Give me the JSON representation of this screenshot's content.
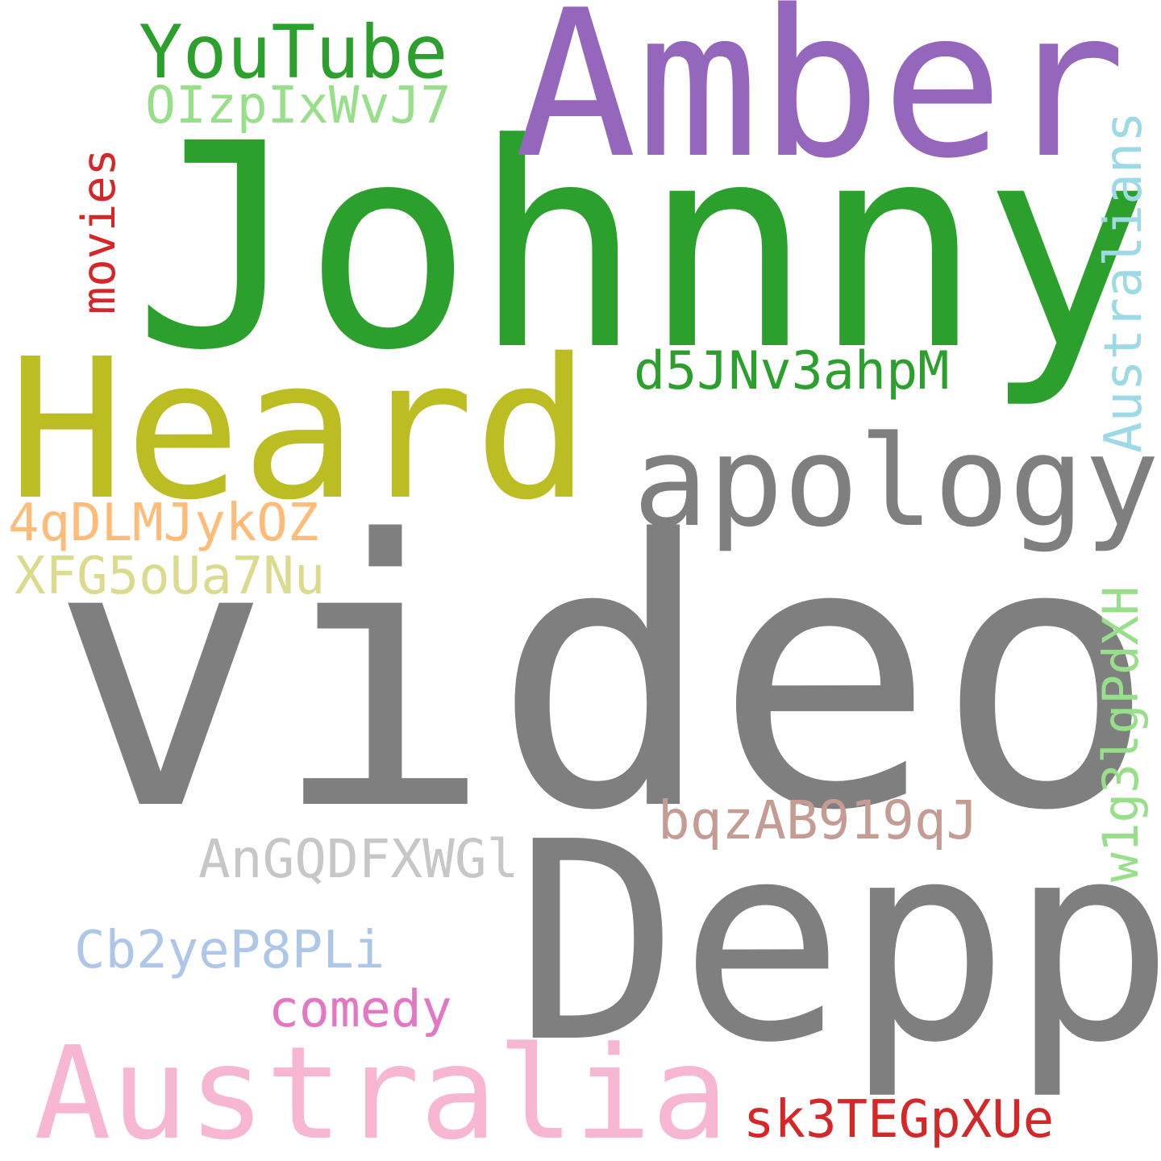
{
  "words": {
    "video": {
      "text": "video",
      "color": "#7f7f7f"
    },
    "depp": {
      "text": "Depp",
      "color": "#7f7f7f"
    },
    "johnny": {
      "text": "Johnny",
      "color": "#2ca02c"
    },
    "amber": {
      "text": "Amber",
      "color": "#9467bd"
    },
    "heard": {
      "text": "Heard",
      "color": "#bcbd22"
    },
    "apology": {
      "text": "apology",
      "color": "#7f7f7f"
    },
    "australia": {
      "text": "Australia",
      "color": "#f7b6d2"
    },
    "youtube": {
      "text": "YouTube",
      "color": "#2ca02c"
    },
    "oizpixwvj7": {
      "text": "OIzpIxWvJ7",
      "color": "#98df8a"
    },
    "movies": {
      "text": "movies",
      "color": "#d62728"
    },
    "australians": {
      "text": "Australians",
      "color": "#9edae5"
    },
    "d5jnv3ahpm": {
      "text": "d5JNv3ahpM",
      "color": "#2ca02c"
    },
    "4qdlmjykoz": {
      "text": "4qDLMJykOZ",
      "color": "#ffbb78"
    },
    "xfg5oua7nu": {
      "text": "XFG5oUa7Nu",
      "color": "#dbdb8d"
    },
    "w1g3lgpdxh": {
      "text": "w1g3lgPdXH",
      "color": "#98df8a"
    },
    "bqzab919qj": {
      "text": "bqzAB919qJ",
      "color": "#c49c94"
    },
    "angqdfxwgl": {
      "text": "AnGQDFXWGl",
      "color": "#c7c7c7"
    },
    "cb2yep8pli": {
      "text": "Cb2yeP8PLi",
      "color": "#aec7e8"
    },
    "comedy": {
      "text": "comedy",
      "color": "#e377c2"
    },
    "sk3tegpxue": {
      "text": "sk3TEGpXUe",
      "color": "#d62728"
    }
  }
}
